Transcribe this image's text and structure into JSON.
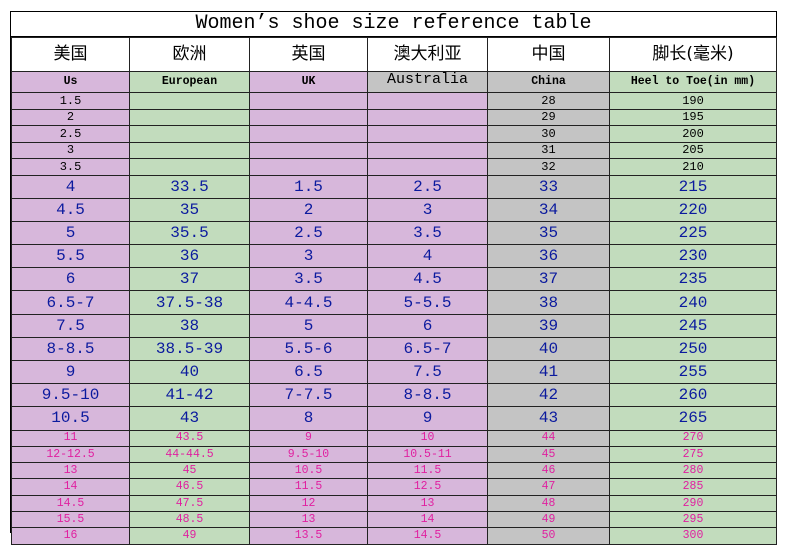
{
  "title": "Women’s shoe size reference table",
  "header_cn": [
    "美国",
    "欧洲",
    "英国",
    "澳大利亚",
    "中国",
    "脚长(毫米)"
  ],
  "header_en": [
    "Us",
    "European",
    "UK",
    "Australia",
    "China",
    "Heel to Toe(in mm)"
  ],
  "rows_small": [
    [
      "1.5",
      "",
      "",
      "",
      "28",
      "190"
    ],
    [
      "2",
      "",
      "",
      "",
      "29",
      "195"
    ],
    [
      "2.5",
      "",
      "",
      "",
      "30",
      "200"
    ],
    [
      "3",
      "",
      "",
      "",
      "31",
      "205"
    ],
    [
      "3.5",
      "",
      "",
      "",
      "32",
      "210"
    ]
  ],
  "rows_main": [
    [
      "4",
      "33.5",
      "1.5",
      "2.5",
      "33",
      "215"
    ],
    [
      "4.5",
      "35",
      "2",
      "3",
      "34",
      "220"
    ],
    [
      "5",
      "35.5",
      "2.5",
      "3.5",
      "35",
      "225"
    ],
    [
      "5.5",
      "36",
      "3",
      "4",
      "36",
      "230"
    ],
    [
      "6",
      "37",
      "3.5",
      "4.5",
      "37",
      "235"
    ],
    [
      "6.5-7",
      "37.5-38",
      "4-4.5",
      "5-5.5",
      "38",
      "240"
    ],
    [
      "7.5",
      "38",
      "5",
      "6",
      "39",
      "245"
    ],
    [
      "8-8.5",
      "38.5-39",
      "5.5-6",
      "6.5-7",
      "40",
      "250"
    ],
    [
      "9",
      "40",
      "6.5",
      "7.5",
      "41",
      "255"
    ],
    [
      "9.5-10",
      "41-42",
      "7-7.5",
      "8-8.5",
      "42",
      "260"
    ],
    [
      "10.5",
      "43",
      "8",
      "9",
      "43",
      "265"
    ]
  ],
  "rows_large": [
    [
      "11",
      "43.5",
      "9",
      "10",
      "44",
      "270"
    ],
    [
      "12-12.5",
      "44-44.5",
      "9.5-10",
      "10.5-11",
      "45",
      "275"
    ],
    [
      "13",
      "45",
      "10.5",
      "11.5",
      "46",
      "280"
    ],
    [
      "14",
      "46.5",
      "11.5",
      "12.5",
      "47",
      "285"
    ],
    [
      "14.5",
      "47.5",
      "12",
      "13",
      "48",
      "290"
    ],
    [
      "15.5",
      "48.5",
      "13",
      "14",
      "49",
      "295"
    ],
    [
      "16",
      "49",
      "13.5",
      "14.5",
      "50",
      "300"
    ]
  ],
  "colors": {
    "lavender": "#d7b7db",
    "green": "#c2dcbd",
    "gray": "#c4c4c4",
    "main_text": "#0b1a9e",
    "large_text": "#e020a0"
  }
}
